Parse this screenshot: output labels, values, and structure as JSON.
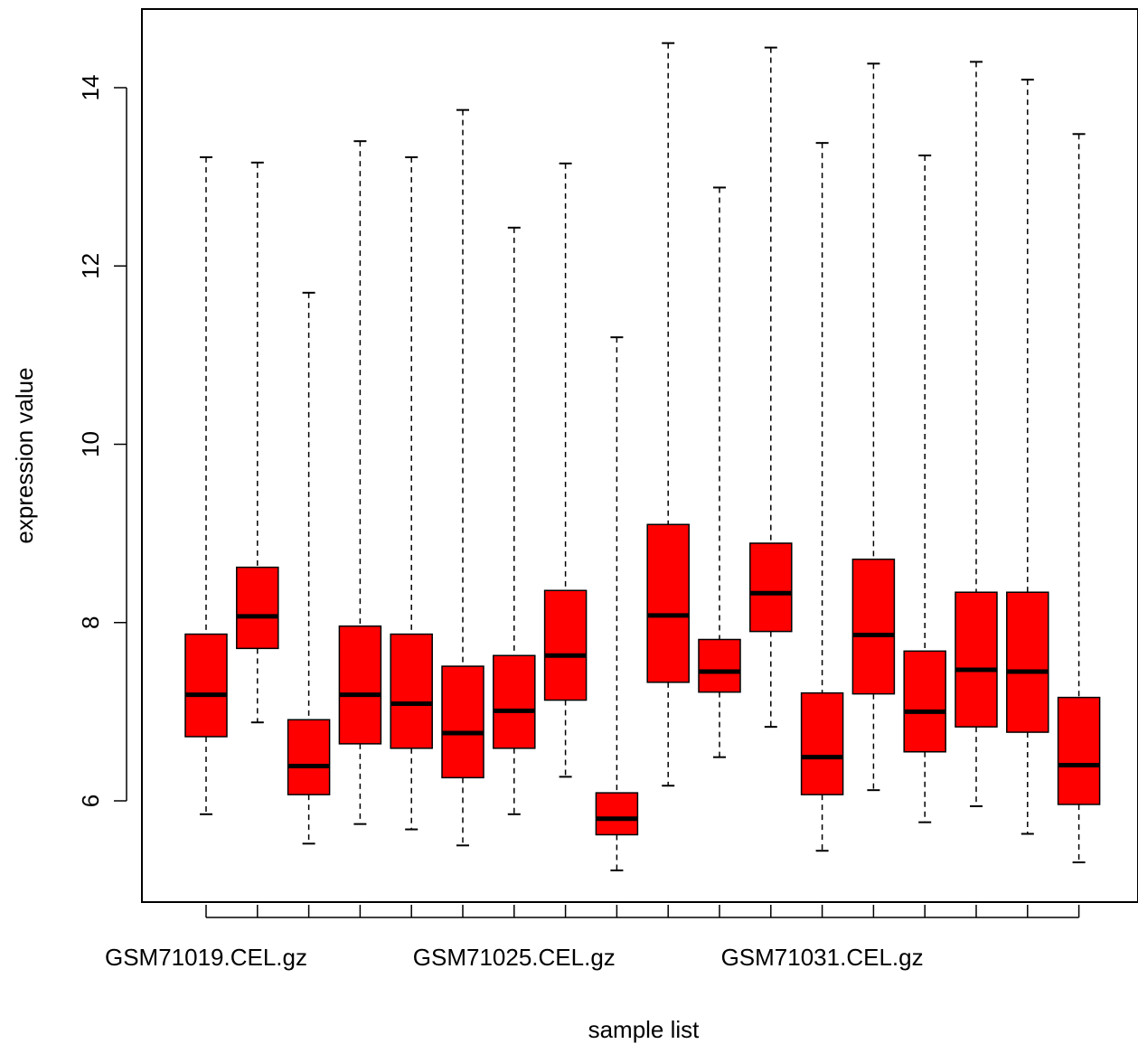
{
  "chart_data": {
    "type": "boxplot",
    "xlabel": "sample list",
    "ylabel": "expression value",
    "ylim": [
      4.9,
      14.8
    ],
    "yticks": [
      6,
      8,
      10,
      12,
      14
    ],
    "box_color": "#ff0000",
    "visible_x_labels": [
      {
        "index": 0,
        "label": "GSM71019.CEL.gz"
      },
      {
        "index": 6,
        "label": "GSM71025.CEL.gz"
      },
      {
        "index": 12,
        "label": "GSM71031.CEL.gz"
      }
    ],
    "boxes": [
      {
        "min": 5.85,
        "q1": 6.72,
        "median": 7.19,
        "q3": 7.87,
        "max": 13.22
      },
      {
        "min": 6.88,
        "q1": 7.71,
        "median": 8.07,
        "q3": 8.62,
        "max": 13.16
      },
      {
        "min": 5.52,
        "q1": 6.07,
        "median": 6.39,
        "q3": 6.91,
        "max": 11.7
      },
      {
        "min": 5.74,
        "q1": 6.64,
        "median": 7.19,
        "q3": 7.96,
        "max": 13.4
      },
      {
        "min": 5.68,
        "q1": 6.59,
        "median": 7.09,
        "q3": 7.87,
        "max": 13.22
      },
      {
        "min": 5.5,
        "q1": 6.26,
        "median": 6.76,
        "q3": 7.51,
        "max": 13.75
      },
      {
        "min": 5.85,
        "q1": 6.59,
        "median": 7.01,
        "q3": 7.63,
        "max": 12.43
      },
      {
        "min": 6.27,
        "q1": 7.13,
        "median": 7.63,
        "q3": 8.36,
        "max": 13.15
      },
      {
        "min": 5.22,
        "q1": 5.62,
        "median": 5.8,
        "q3": 6.09,
        "max": 11.2
      },
      {
        "min": 6.17,
        "q1": 7.33,
        "median": 8.08,
        "q3": 9.1,
        "max": 14.5
      },
      {
        "min": 6.49,
        "q1": 7.22,
        "median": 7.45,
        "q3": 7.81,
        "max": 12.88
      },
      {
        "min": 6.83,
        "q1": 7.9,
        "median": 8.33,
        "q3": 8.89,
        "max": 14.45
      },
      {
        "min": 5.44,
        "q1": 6.07,
        "median": 6.49,
        "q3": 7.21,
        "max": 13.38
      },
      {
        "min": 6.12,
        "q1": 7.2,
        "median": 7.86,
        "q3": 8.71,
        "max": 14.27
      },
      {
        "min": 5.76,
        "q1": 6.55,
        "median": 7.0,
        "q3": 7.68,
        "max": 13.24
      },
      {
        "min": 5.94,
        "q1": 6.83,
        "median": 7.47,
        "q3": 8.34,
        "max": 14.29
      },
      {
        "min": 5.63,
        "q1": 6.77,
        "median": 7.45,
        "q3": 8.34,
        "max": 14.09
      },
      {
        "min": 5.31,
        "q1": 5.96,
        "median": 6.4,
        "q3": 7.16,
        "max": 13.48
      }
    ]
  }
}
